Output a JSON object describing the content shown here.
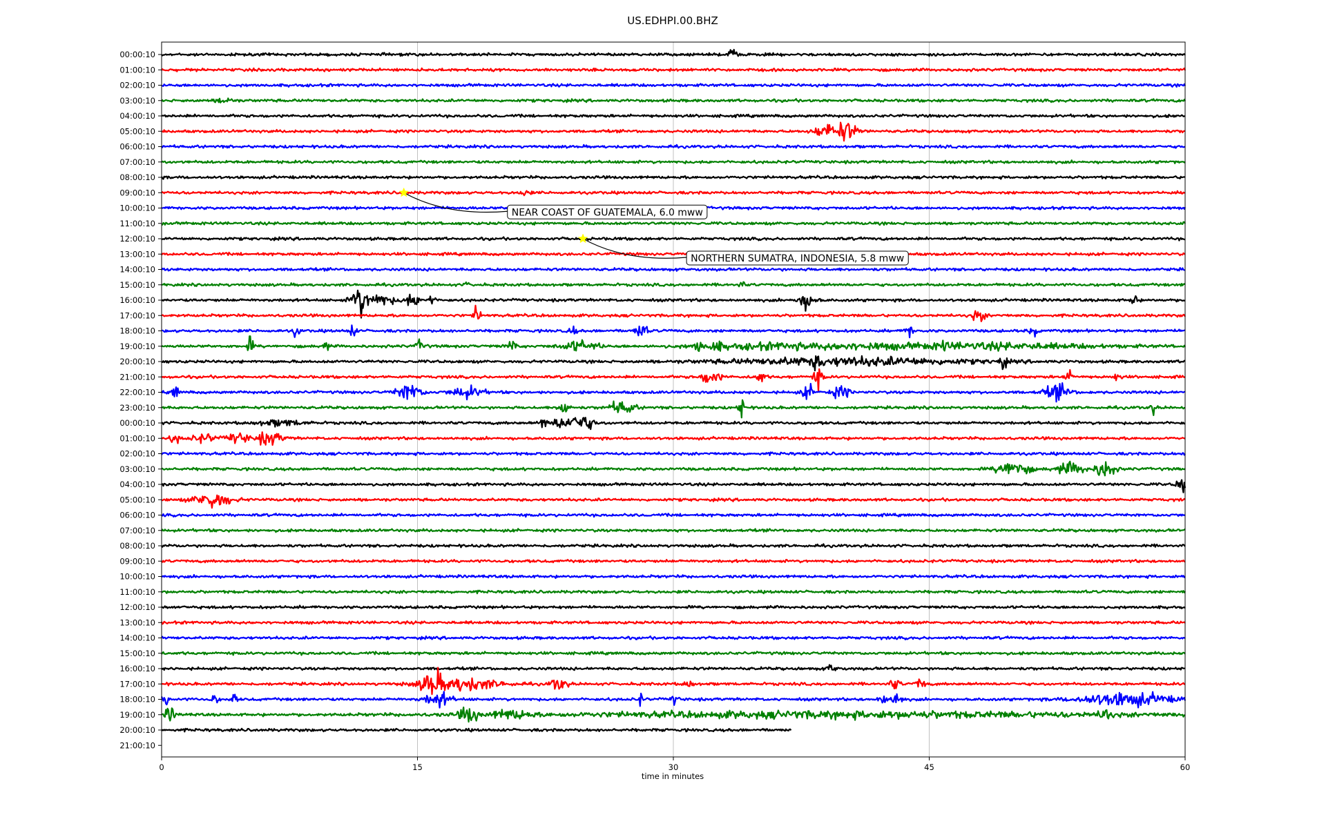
{
  "chart_data": {
    "type": "line",
    "title": "US.EDHPI.00.BHZ",
    "xlabel": "time in minutes",
    "ylabel": "",
    "xlim": [
      0,
      60
    ],
    "x_ticks": [
      "0",
      "15",
      "30",
      "45",
      "60"
    ],
    "x_tick_values": [
      0,
      15,
      30,
      45,
      60
    ],
    "grid": "vertical at 15, 30, 45",
    "colors": [
      "#000000",
      "#ff0000",
      "#0000ff",
      "#008000"
    ],
    "rows": [
      {
        "label": "00:00:10",
        "bursts": [
          [
            33.5,
            6,
            0.3
          ]
        ]
      },
      {
        "label": "01:00:10",
        "bursts": []
      },
      {
        "label": "02:00:10",
        "bursts": []
      },
      {
        "label": "03:00:10",
        "bursts": [
          [
            3.7,
            3,
            0.5
          ]
        ]
      },
      {
        "label": "04:00:10",
        "bursts": []
      },
      {
        "label": "05:00:10",
        "bursts": [
          [
            39,
            7,
            0.8
          ],
          [
            40,
            10,
            0.8
          ]
        ]
      },
      {
        "label": "06:00:10",
        "bursts": []
      },
      {
        "label": "07:00:10",
        "bursts": []
      },
      {
        "label": "08:00:10",
        "bursts": []
      },
      {
        "label": "09:00:10",
        "bursts": [
          [
            21.3,
            3,
            0.3
          ]
        ]
      },
      {
        "label": "10:00:10",
        "bursts": []
      },
      {
        "label": "11:00:10",
        "bursts": []
      },
      {
        "label": "12:00:10",
        "bursts": []
      },
      {
        "label": "13:00:10",
        "bursts": []
      },
      {
        "label": "14:00:10",
        "bursts": []
      },
      {
        "label": "15:00:10",
        "bursts": [
          [
            18,
            3,
            0.2
          ],
          [
            34,
            3,
            0.2
          ]
        ]
      },
      {
        "label": "16:00:10",
        "bursts": [
          [
            11.6,
            17,
            0.5
          ],
          [
            12.5,
            7,
            1.2
          ],
          [
            14.7,
            6,
            0.6
          ],
          [
            15.8,
            7,
            0.2
          ],
          [
            37.8,
            8,
            0.6
          ],
          [
            57,
            7,
            0.2
          ]
        ]
      },
      {
        "label": "17:00:10",
        "bursts": [
          [
            18.5,
            11,
            0.2
          ],
          [
            47.9,
            7,
            0.4
          ]
        ]
      },
      {
        "label": "18:00:10",
        "bursts": [
          [
            7.9,
            6,
            0.2
          ],
          [
            11.2,
            8,
            0.2
          ],
          [
            24.1,
            6,
            0.2
          ],
          [
            28.1,
            7,
            0.4
          ],
          [
            43.8,
            10,
            0.2
          ],
          [
            51.1,
            8,
            0.2
          ]
        ]
      },
      {
        "label": "19:00:10",
        "bursts": [
          [
            5.2,
            9,
            0.2
          ],
          [
            9.6,
            6,
            0.2
          ],
          [
            15.2,
            6,
            0.3
          ],
          [
            20.5,
            6,
            0.3
          ],
          [
            24.5,
            5,
            1.2
          ],
          [
            31.5,
            7,
            0.3
          ],
          [
            32.5,
            7,
            0.4
          ],
          [
            36,
            3,
            5
          ],
          [
            41,
            3,
            6
          ],
          [
            45.8,
            6,
            0.4
          ],
          [
            48,
            3,
            8
          ]
        ]
      },
      {
        "label": "20:00:10",
        "bursts": [
          [
            38.4,
            10,
            0.3
          ],
          [
            40.3,
            4,
            8
          ],
          [
            49.3,
            7,
            0.3
          ]
        ]
      },
      {
        "label": "21:00:10",
        "bursts": [
          [
            32.2,
            8,
            0.6
          ],
          [
            35.1,
            7,
            0.3
          ],
          [
            38.5,
            10,
            0.3
          ],
          [
            53.2,
            5,
            0.3
          ],
          [
            56,
            3,
            0.3
          ]
        ]
      },
      {
        "label": "22:00:10",
        "bursts": [
          [
            0.8,
            8,
            0.2
          ],
          [
            14.5,
            9,
            0.8
          ],
          [
            17.9,
            6,
            1.0
          ],
          [
            37.9,
            7,
            0.4
          ],
          [
            39.8,
            6,
            0.6
          ],
          [
            52.5,
            8,
            0.8
          ]
        ]
      },
      {
        "label": "23:00:10",
        "bursts": [
          [
            23.6,
            10,
            0.3
          ],
          [
            27,
            7,
            0.8
          ],
          [
            34,
            11,
            0.2
          ],
          [
            58.1,
            6,
            0.2
          ]
        ]
      },
      {
        "label": "00:00:10",
        "bursts": [
          [
            7,
            3,
            1.5
          ],
          [
            22.4,
            9,
            0.2
          ],
          [
            23.5,
            7,
            0.6
          ],
          [
            24.6,
            9,
            0.8
          ]
        ]
      },
      {
        "label": "01:00:10",
        "bursts": [
          [
            0.8,
            5,
            0.3
          ],
          [
            2.5,
            4,
            0.8
          ],
          [
            4.5,
            5,
            0.8
          ],
          [
            6.3,
            7,
            0.8
          ]
        ]
      },
      {
        "label": "02:00:10",
        "bursts": []
      },
      {
        "label": "03:00:10",
        "bursts": [
          [
            49.9,
            9,
            1.0
          ],
          [
            53.3,
            6,
            1.0
          ],
          [
            55.3,
            10,
            0.6
          ]
        ]
      },
      {
        "label": "04:00:10",
        "bursts": [
          [
            59.8,
            10,
            0.3
          ]
        ]
      },
      {
        "label": "05:00:10",
        "bursts": [
          [
            3,
            8,
            1.2
          ]
        ]
      },
      {
        "label": "06:00:10",
        "bursts": []
      },
      {
        "label": "07:00:10",
        "bursts": []
      },
      {
        "label": "08:00:10",
        "bursts": []
      },
      {
        "label": "09:00:10",
        "bursts": []
      },
      {
        "label": "10:00:10",
        "bursts": []
      },
      {
        "label": "11:00:10",
        "bursts": []
      },
      {
        "label": "12:00:10",
        "bursts": []
      },
      {
        "label": "13:00:10",
        "bursts": []
      },
      {
        "label": "14:00:10",
        "bursts": []
      },
      {
        "label": "15:00:10",
        "bursts": []
      },
      {
        "label": "16:00:10",
        "bursts": [
          [
            39.3,
            5,
            0.3
          ]
        ]
      },
      {
        "label": "17:00:10",
        "bursts": [
          [
            15.9,
            14,
            0.8
          ],
          [
            17.5,
            7,
            2.5
          ],
          [
            23.3,
            7,
            0.5
          ],
          [
            30.9,
            4,
            0.3
          ],
          [
            43,
            6,
            0.3
          ],
          [
            44.5,
            6,
            0.3
          ]
        ]
      },
      {
        "label": "18:00:10",
        "bursts": [
          [
            0.3,
            5,
            0.3
          ],
          [
            3.1,
            6,
            0.2
          ],
          [
            4.2,
            6,
            0.2
          ],
          [
            16.2,
            8,
            0.8
          ],
          [
            28.1,
            6,
            0.2
          ],
          [
            30.1,
            6,
            0.2
          ],
          [
            42.3,
            6,
            0.3
          ],
          [
            43.1,
            8,
            0.3
          ],
          [
            56.5,
            7,
            3
          ]
        ]
      },
      {
        "label": "19:00:10",
        "bursts": [
          [
            0.5,
            8,
            0.3
          ],
          [
            18,
            9,
            0.6
          ],
          [
            20.5,
            5,
            1.5
          ],
          [
            40,
            3,
            20
          ],
          [
            55.3,
            8,
            0.4
          ]
        ]
      },
      {
        "label": "20:00:10",
        "bursts": [],
        "end": 36.9
      },
      {
        "label": "21:00:10",
        "bursts": [],
        "end": 0
      }
    ],
    "annotations": [
      {
        "text": "NEAR COAST OF GUATEMALA, 6.0 mww",
        "row": 9,
        "x": 14.2,
        "marker": "star",
        "marker_color": "#ffff00"
      },
      {
        "text": "NORTHERN SUMATRA, INDONESIA, 5.8 mww",
        "row": 12,
        "x": 24.7,
        "marker": "star",
        "marker_color": "#ffff00"
      }
    ]
  }
}
